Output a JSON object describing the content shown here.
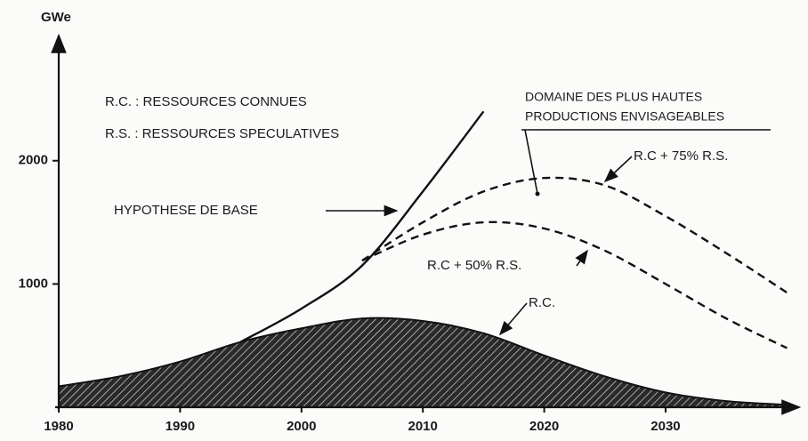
{
  "chart_data": {
    "type": "line",
    "y_label": "GWe",
    "legend_lines": [
      "R.C. : RESSOURCES CONNUES",
      "R.S. : RESSOURCES SPECULATIVES"
    ],
    "annotations": [
      "DOMAINE DES PLUS HAUTES",
      "PRODUCTIONS ENVISAGEABLES"
    ],
    "x": [
      1980,
      1985,
      1990,
      1995,
      2000,
      2005,
      2010,
      2015,
      2020,
      2025,
      2030,
      2035,
      2040
    ],
    "series": [
      {
        "name": "HYPOTHESE DE BASE",
        "color": "#111111",
        "style": "solid",
        "values": [
          null,
          null,
          null,
          530,
          800,
          1150,
          1750,
          2400,
          null,
          null,
          null,
          null,
          null
        ]
      },
      {
        "name": "R.C + 75% R.S.",
        "color": "#111111",
        "style": "dashed",
        "values": [
          null,
          null,
          null,
          null,
          null,
          1190,
          1500,
          1750,
          1860,
          1800,
          1550,
          1250,
          930
        ]
      },
      {
        "name": "R.C + 50% R.S.",
        "color": "#111111",
        "style": "dashed",
        "values": [
          null,
          null,
          null,
          null,
          null,
          1190,
          1400,
          1500,
          1450,
          1270,
          1000,
          720,
          480
        ]
      },
      {
        "name": "R.C.",
        "color": "#111111",
        "style": "hatched-area",
        "values": [
          170,
          250,
          370,
          530,
          640,
          720,
          700,
          600,
          420,
          250,
          120,
          50,
          20
        ]
      }
    ],
    "xlim": [
      1980,
      2041
    ],
    "ylim": [
      0,
      2900
    ],
    "xticks": [
      1980,
      1990,
      2000,
      2010,
      2020,
      2030
    ],
    "yticks": [
      1000,
      2000
    ]
  }
}
